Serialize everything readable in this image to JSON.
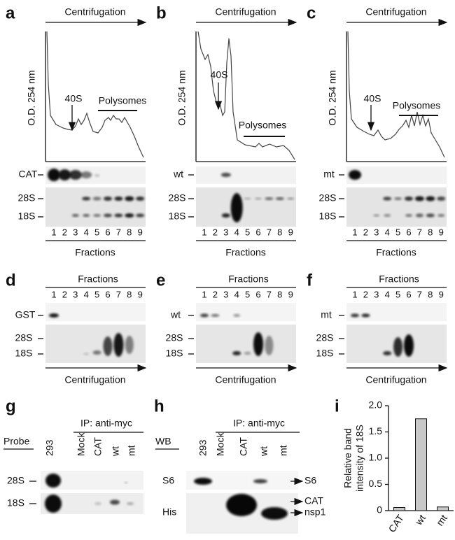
{
  "panels_top": [
    {
      "label": "a",
      "arrow_label": "Centrifugation",
      "y_axis_label": "O.D. 254 nm",
      "peak_label": "40S",
      "region_label": "Polysomes",
      "probe": "CAT",
      "rrna": [
        "28S",
        "18S"
      ],
      "fractions": [
        "1",
        "2",
        "3",
        "4",
        "5",
        "6",
        "7",
        "8",
        "9"
      ],
      "fractions_label": "Fractions"
    },
    {
      "label": "b",
      "arrow_label": "Centrifugation",
      "y_axis_label": "O.D. 254 nm",
      "peak_label": "40S",
      "region_label": "Polysomes",
      "probe": "wt",
      "rrna": [
        "28S",
        "18S"
      ],
      "fractions": [
        "1",
        "2",
        "3",
        "4",
        "5",
        "6",
        "7",
        "8",
        "9"
      ],
      "fractions_label": "Fractions"
    },
    {
      "label": "c",
      "arrow_label": "Centrifugation",
      "y_axis_label": "O.D. 254 nm",
      "peak_label": "40S",
      "region_label": "Polysomes",
      "probe": "mt",
      "rrna": [
        "28S",
        "18S"
      ],
      "fractions": [
        "1",
        "2",
        "3",
        "4",
        "5",
        "6",
        "7",
        "8",
        "9"
      ],
      "fractions_label": "Fractions"
    }
  ],
  "panels_mid": [
    {
      "label": "d",
      "fractions_label": "Fractions",
      "fractions": [
        "1",
        "2",
        "3",
        "4",
        "5",
        "6",
        "7",
        "8",
        "9"
      ],
      "probe": "GST",
      "rrna": [
        "28S",
        "18S"
      ],
      "arrow_label": "Centrifugation"
    },
    {
      "label": "e",
      "fractions_label": "Fractions",
      "fractions": [
        "1",
        "2",
        "3",
        "4",
        "5",
        "6",
        "7",
        "8",
        "9"
      ],
      "probe": "wt",
      "rrna": [
        "28S",
        "18S"
      ],
      "arrow_label": "Centrifugation"
    },
    {
      "label": "f",
      "fractions_label": "Fractions",
      "fractions": [
        "1",
        "2",
        "3",
        "4",
        "5",
        "6",
        "7",
        "8",
        "9"
      ],
      "probe": "mt",
      "rrna": [
        "28S",
        "18S"
      ],
      "arrow_label": "Centrifugation"
    }
  ],
  "panel_g": {
    "label": "g",
    "ip_label": "IP: anti-myc",
    "row_header": "Probe",
    "lanes": [
      "293",
      "Mock",
      "CAT",
      "wt",
      "mt"
    ],
    "rows": [
      "28S",
      "18S"
    ]
  },
  "panel_h": {
    "label": "h",
    "ip_label": "IP: anti-myc",
    "row_header": "WB",
    "lanes": [
      "293",
      "Mock",
      "CAT",
      "wt",
      "mt"
    ],
    "rows": [
      "S6",
      "His"
    ],
    "right_labels": [
      "S6",
      "CAT",
      "nsp1"
    ]
  },
  "chart_data": {
    "type": "bar",
    "panel_label": "i",
    "y_label": [
      "Relative band",
      "intensity of 18S"
    ],
    "categories": [
      "CAT",
      "wt",
      "mt"
    ],
    "values": [
      0.06,
      1.75,
      0.07
    ],
    "color": "#c8c8c8",
    "ylim": [
      0,
      2
    ],
    "yticks": [
      0,
      0.5,
      {
        "value": 1,
        "label": "1.0"
      },
      1.5,
      {
        "value": 2,
        "label": "2.0"
      }
    ]
  }
}
